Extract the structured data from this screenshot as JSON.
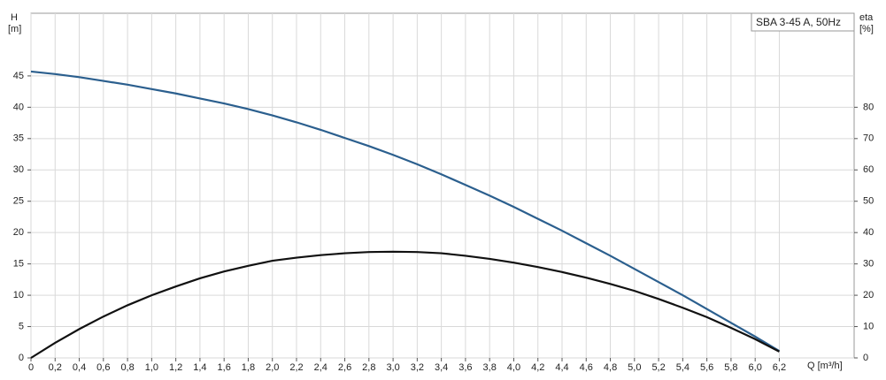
{
  "chart_data": {
    "type": "line",
    "legend_label": "SBA 3-45 A, 50Hz",
    "y_label": [
      "H",
      "[m]"
    ],
    "y2_label": [
      "eta",
      "[%]"
    ],
    "x_label": "Q [m³/h]",
    "x": [
      0,
      0.2,
      0.4,
      0.6,
      0.8,
      1.0,
      1.2,
      1.4,
      1.6,
      1.8,
      2.0,
      2.2,
      2.4,
      2.6,
      2.8,
      3.0,
      3.2,
      3.4,
      3.6,
      3.8,
      4.0,
      4.2,
      4.4,
      4.6,
      4.8,
      5.0,
      5.2,
      5.4,
      5.6,
      5.8,
      6.0,
      6.2
    ],
    "series": [
      {
        "name": "H",
        "color": "#2b5f8e",
        "axis": "y",
        "values": [
          45.7,
          45.3,
          44.8,
          44.2,
          43.6,
          42.9,
          42.2,
          41.4,
          40.6,
          39.7,
          38.7,
          37.6,
          36.4,
          35.1,
          33.8,
          32.4,
          30.9,
          29.3,
          27.6,
          25.9,
          24.1,
          22.2,
          20.3,
          18.3,
          16.3,
          14.2,
          12.1,
          10,
          7.8,
          5.6,
          3.4,
          1.1
        ]
      },
      {
        "name": "eta",
        "color": "#111111",
        "axis": "y2",
        "values": [
          0,
          4.8,
          9.2,
          13.2,
          16.8,
          20,
          22.8,
          25.4,
          27.6,
          29.4,
          31,
          32,
          32.8,
          33.4,
          33.8,
          33.9,
          33.8,
          33.4,
          32.6,
          31.6,
          30.4,
          29,
          27.4,
          25.6,
          23.6,
          21.4,
          18.8,
          16,
          13,
          9.6,
          6,
          2
        ]
      }
    ],
    "xlim": [
      0,
      6.82
    ],
    "ylim": [
      0,
      55
    ],
    "y2lim": [
      0,
      110
    ],
    "xticks": [
      0,
      {
        "value": 0.2,
        "label": "0,2"
      },
      {
        "value": 0.4,
        "label": "0,4"
      },
      {
        "value": 0.6,
        "label": "0,6"
      },
      {
        "value": 0.8,
        "label": "0,8"
      },
      {
        "value": 1.0,
        "label": "1,0"
      },
      {
        "value": 1.2,
        "label": "1,2"
      },
      {
        "value": 1.4,
        "label": "1,4"
      },
      {
        "value": 1.6,
        "label": "1,6"
      },
      {
        "value": 1.8,
        "label": "1,8"
      },
      {
        "value": 2.0,
        "label": "2,0"
      },
      {
        "value": 2.2,
        "label": "2,2"
      },
      {
        "value": 2.4,
        "label": "2,4"
      },
      {
        "value": 2.6,
        "label": "2,6"
      },
      {
        "value": 2.8,
        "label": "2,8"
      },
      {
        "value": 3.0,
        "label": "3,0"
      },
      {
        "value": 3.2,
        "label": "3,2"
      },
      {
        "value": 3.4,
        "label": "3,4"
      },
      {
        "value": 3.6,
        "label": "3,6"
      },
      {
        "value": 3.8,
        "label": "3,8"
      },
      {
        "value": 4.0,
        "label": "4,0"
      },
      {
        "value": 4.2,
        "label": "4,2"
      },
      {
        "value": 4.4,
        "label": "4,4"
      },
      {
        "value": 4.6,
        "label": "4,6"
      },
      {
        "value": 4.8,
        "label": "4,8"
      },
      {
        "value": 5.0,
        "label": "5,0"
      },
      {
        "value": 5.2,
        "label": "5,2"
      },
      {
        "value": 5.4,
        "label": "5,4"
      },
      {
        "value": 5.6,
        "label": "5,6"
      },
      {
        "value": 5.8,
        "label": "5,8"
      },
      {
        "value": 6.0,
        "label": "6,0"
      },
      {
        "value": 6.2,
        "label": "6,2"
      }
    ],
    "yticks": [
      0,
      5,
      10,
      15,
      20,
      25,
      30,
      35,
      40,
      45
    ],
    "y2ticks": [
      0,
      10,
      20,
      30,
      40,
      50,
      60,
      70,
      80
    ],
    "grid": true
  }
}
